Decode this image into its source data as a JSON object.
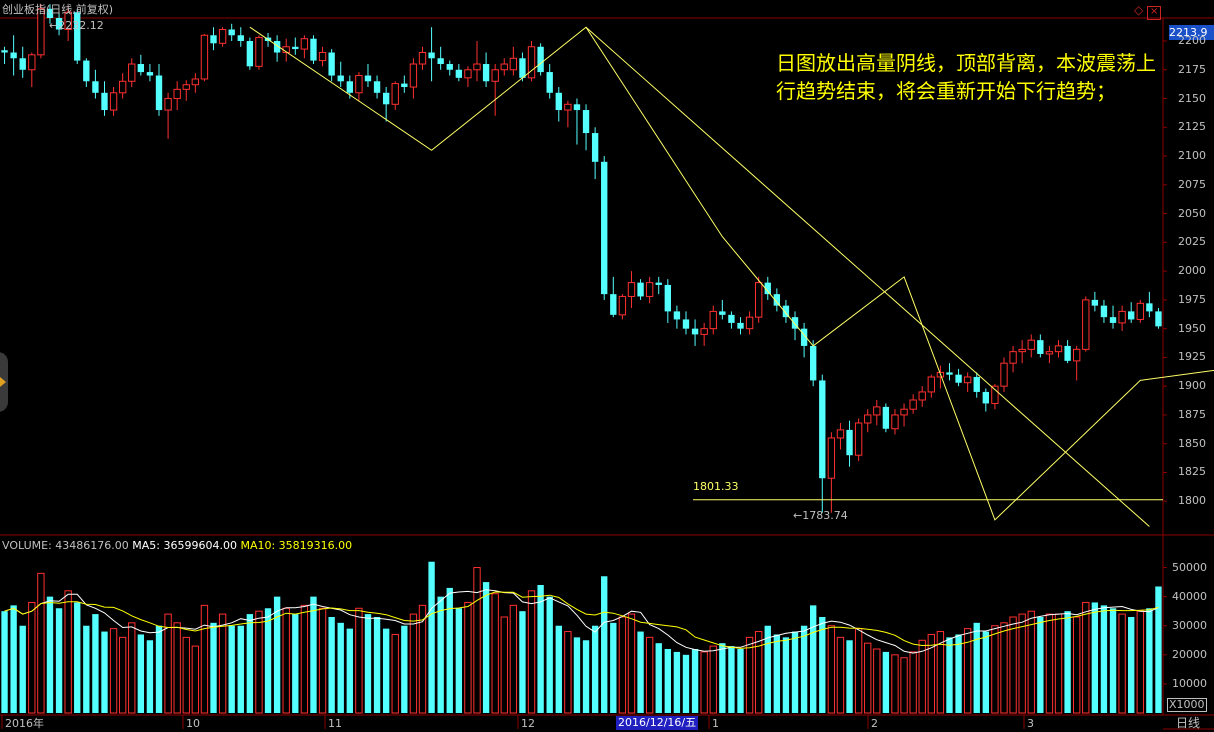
{
  "window": {
    "title": "创业板指(日线,前复权)",
    "period_label": "日线"
  },
  "annotation": "日图放出高量阴线，顶部背离，本波震荡上行趋势结束，将会重新开始下行趋势；",
  "price_axis": {
    "current_price": "2213.9",
    "ticks": [
      "2200",
      "2175",
      "2150",
      "2125",
      "2100",
      "2075",
      "2050",
      "2025",
      "2000",
      "1975",
      "1950",
      "1925",
      "1900",
      "1875",
      "1850",
      "1825",
      "1800"
    ]
  },
  "volume_axis": {
    "unit": "X1000",
    "ticks": [
      "50000",
      "40000",
      "30000",
      "20000",
      "10000"
    ]
  },
  "volume_header": {
    "volume": "VOLUME: 43486176.00",
    "ma5": "MA5: 36599604.00",
    "ma10": "MA10: 35819316.00"
  },
  "x_axis": {
    "labels": [
      "2016年",
      "10",
      "11",
      "12",
      "1",
      "2",
      "3"
    ],
    "cursor_label": "2016/12/16/五"
  },
  "markers": {
    "high_label": "2232.12",
    "low_label": "1783.74",
    "support_label": "1801.33"
  },
  "colors": {
    "up": "#ff3030",
    "down": "#54ffff",
    "trend": "#ffff66",
    "ma5": "#ffffff",
    "ma10": "#ffff00",
    "grid": "#8b0000"
  },
  "chart_data": {
    "type": "candlestick",
    "title": "创业板指(日线,前复权)",
    "ylim": [
      1775,
      2220
    ],
    "volume_ylim": [
      0,
      55000
    ],
    "support_level": 1801.33,
    "low_marker": 1783.74,
    "high_marker": 2232.12,
    "ohlcv": [
      [
        2192,
        2195,
        2180,
        2190,
        35000
      ],
      [
        2190,
        2205,
        2170,
        2185,
        37000
      ],
      [
        2185,
        2195,
        2168,
        2175,
        30000
      ],
      [
        2175,
        2190,
        2160,
        2188,
        38000
      ],
      [
        2188,
        2232,
        2185,
        2228,
        48000
      ],
      [
        2228,
        2232,
        2215,
        2220,
        40000
      ],
      [
        2220,
        2225,
        2205,
        2210,
        36000
      ],
      [
        2210,
        2230,
        2200,
        2225,
        42000
      ],
      [
        2225,
        2228,
        2180,
        2183,
        38000
      ],
      [
        2183,
        2185,
        2160,
        2165,
        30000
      ],
      [
        2165,
        2175,
        2150,
        2155,
        34000
      ],
      [
        2155,
        2165,
        2135,
        2140,
        28000
      ],
      [
        2140,
        2160,
        2135,
        2155,
        29000
      ],
      [
        2155,
        2172,
        2150,
        2165,
        26000
      ],
      [
        2165,
        2185,
        2160,
        2180,
        31000
      ],
      [
        2180,
        2188,
        2170,
        2173,
        27000
      ],
      [
        2173,
        2180,
        2165,
        2170,
        25000
      ],
      [
        2170,
        2180,
        2135,
        2140,
        30000
      ],
      [
        2140,
        2155,
        2115,
        2150,
        34000
      ],
      [
        2150,
        2165,
        2140,
        2158,
        31000
      ],
      [
        2158,
        2166,
        2148,
        2162,
        26000
      ],
      [
        2162,
        2172,
        2155,
        2167,
        23000
      ],
      [
        2167,
        2206,
        2165,
        2205,
        37000
      ],
      [
        2205,
        2212,
        2192,
        2198,
        31000
      ],
      [
        2198,
        2212,
        2195,
        2210,
        34000
      ],
      [
        2210,
        2215,
        2200,
        2205,
        30000
      ],
      [
        2205,
        2212,
        2195,
        2200,
        30000
      ],
      [
        2200,
        2203,
        2175,
        2178,
        34000
      ],
      [
        2178,
        2205,
        2175,
        2203,
        35000
      ],
      [
        2203,
        2207,
        2195,
        2200,
        36000
      ],
      [
        2200,
        2205,
        2182,
        2190,
        40000
      ],
      [
        2190,
        2202,
        2182,
        2195,
        36000
      ],
      [
        2195,
        2203,
        2188,
        2193,
        34000
      ],
      [
        2193,
        2205,
        2185,
        2202,
        37000
      ],
      [
        2202,
        2205,
        2180,
        2183,
        40000
      ],
      [
        2183,
        2195,
        2178,
        2190,
        36000
      ],
      [
        2190,
        2193,
        2165,
        2170,
        33000
      ],
      [
        2170,
        2182,
        2160,
        2165,
        31000
      ],
      [
        2165,
        2170,
        2150,
        2155,
        29000
      ],
      [
        2155,
        2173,
        2148,
        2170,
        36000
      ],
      [
        2170,
        2180,
        2160,
        2165,
        34000
      ],
      [
        2165,
        2170,
        2150,
        2155,
        33000
      ],
      [
        2155,
        2160,
        2130,
        2145,
        29000
      ],
      [
        2145,
        2165,
        2140,
        2163,
        27000
      ],
      [
        2163,
        2170,
        2155,
        2160,
        30000
      ],
      [
        2160,
        2185,
        2150,
        2180,
        34000
      ],
      [
        2180,
        2195,
        2175,
        2190,
        37000
      ],
      [
        2190,
        2212,
        2165,
        2185,
        52000
      ],
      [
        2185,
        2195,
        2175,
        2180,
        40000
      ],
      [
        2180,
        2183,
        2170,
        2175,
        43000
      ],
      [
        2175,
        2180,
        2165,
        2168,
        36000
      ],
      [
        2168,
        2178,
        2160,
        2175,
        38000
      ],
      [
        2175,
        2200,
        2165,
        2180,
        50000
      ],
      [
        2180,
        2190,
        2160,
        2165,
        45000
      ],
      [
        2165,
        2180,
        2135,
        2175,
        41000
      ],
      [
        2175,
        2185,
        2170,
        2180,
        33000
      ],
      [
        2175,
        2195,
        2170,
        2185,
        37000
      ],
      [
        2185,
        2190,
        2165,
        2168,
        35000
      ],
      [
        2168,
        2200,
        2165,
        2195,
        42000
      ],
      [
        2195,
        2198,
        2170,
        2173,
        44000
      ],
      [
        2173,
        2180,
        2150,
        2155,
        40000
      ],
      [
        2155,
        2160,
        2130,
        2140,
        30000
      ],
      [
        2140,
        2148,
        2125,
        2145,
        28000
      ],
      [
        2145,
        2150,
        2110,
        2140,
        26000
      ],
      [
        2140,
        2145,
        2105,
        2120,
        25000
      ],
      [
        2120,
        2125,
        2080,
        2095,
        30000
      ],
      [
        2095,
        2100,
        1975,
        1980,
        47000
      ],
      [
        1980,
        1995,
        1960,
        1962,
        31000
      ],
      [
        1962,
        1980,
        1958,
        1978,
        33000
      ],
      [
        1978,
        2000,
        1968,
        1990,
        34000
      ],
      [
        1990,
        1993,
        1975,
        1978,
        28000
      ],
      [
        1978,
        1995,
        1972,
        1990,
        26000
      ],
      [
        1990,
        1995,
        1980,
        1988,
        24000
      ],
      [
        1988,
        1993,
        1955,
        1965,
        22000
      ],
      [
        1965,
        1970,
        1950,
        1958,
        21000
      ],
      [
        1958,
        1965,
        1945,
        1950,
        20000
      ],
      [
        1950,
        1958,
        1935,
        1945,
        22000
      ],
      [
        1945,
        1955,
        1935,
        1950,
        21000
      ],
      [
        1950,
        1970,
        1945,
        1965,
        23000
      ],
      [
        1965,
        1975,
        1958,
        1962,
        24000
      ],
      [
        1962,
        1965,
        1950,
        1955,
        23000
      ],
      [
        1955,
        1960,
        1945,
        1950,
        22000
      ],
      [
        1950,
        1965,
        1945,
        1960,
        26000
      ],
      [
        1960,
        1995,
        1955,
        1990,
        28000
      ],
      [
        1990,
        1995,
        1975,
        1980,
        30000
      ],
      [
        1980,
        1985,
        1965,
        1970,
        27000
      ],
      [
        1970,
        1975,
        1955,
        1960,
        26000
      ],
      [
        1960,
        1965,
        1940,
        1950,
        28000
      ],
      [
        1950,
        1955,
        1925,
        1935,
        30000
      ],
      [
        1935,
        1940,
        1900,
        1905,
        37000
      ],
      [
        1905,
        1910,
        1790,
        1820,
        33000
      ],
      [
        1820,
        1860,
        1790,
        1855,
        30000
      ],
      [
        1855,
        1868,
        1845,
        1862,
        26000
      ],
      [
        1862,
        1870,
        1830,
        1840,
        25000
      ],
      [
        1840,
        1872,
        1835,
        1868,
        29000
      ],
      [
        1868,
        1880,
        1860,
        1875,
        24000
      ],
      [
        1875,
        1888,
        1866,
        1882,
        22000
      ],
      [
        1882,
        1885,
        1860,
        1863,
        21000
      ],
      [
        1863,
        1880,
        1858,
        1875,
        20000
      ],
      [
        1875,
        1885,
        1865,
        1880,
        19000
      ],
      [
        1880,
        1893,
        1876,
        1888,
        21000
      ],
      [
        1888,
        1900,
        1882,
        1895,
        25000
      ],
      [
        1895,
        1910,
        1890,
        1908,
        27000
      ],
      [
        1908,
        1918,
        1898,
        1912,
        28000
      ],
      [
        1912,
        1920,
        1905,
        1910,
        26000
      ],
      [
        1910,
        1915,
        1900,
        1903,
        27000
      ],
      [
        1903,
        1912,
        1895,
        1908,
        29000
      ],
      [
        1908,
        1912,
        1890,
        1895,
        31000
      ],
      [
        1895,
        1898,
        1878,
        1885,
        28000
      ],
      [
        1885,
        1902,
        1880,
        1900,
        30000
      ],
      [
        1900,
        1925,
        1895,
        1920,
        31000
      ],
      [
        1920,
        1935,
        1912,
        1930,
        33000
      ],
      [
        1930,
        1940,
        1920,
        1932,
        34000
      ],
      [
        1932,
        1945,
        1925,
        1940,
        35000
      ],
      [
        1940,
        1945,
        1925,
        1928,
        33000
      ],
      [
        1928,
        1935,
        1920,
        1930,
        34000
      ],
      [
        1930,
        1940,
        1925,
        1935,
        34000
      ],
      [
        1935,
        1940,
        1920,
        1922,
        35000
      ],
      [
        1922,
        1935,
        1905,
        1932,
        33000
      ],
      [
        1932,
        1978,
        1930,
        1975,
        38000
      ],
      [
        1975,
        1982,
        1965,
        1970,
        38000
      ],
      [
        1970,
        1975,
        1955,
        1960,
        37000
      ],
      [
        1960,
        1970,
        1950,
        1955,
        36000
      ],
      [
        1955,
        1970,
        1948,
        1965,
        34000
      ],
      [
        1965,
        1973,
        1955,
        1958,
        33000
      ],
      [
        1958,
        1975,
        1955,
        1972,
        35000
      ],
      [
        1972,
        1982,
        1960,
        1965,
        36000
      ],
      [
        1965,
        1968,
        1950,
        1952,
        43486
      ]
    ]
  }
}
